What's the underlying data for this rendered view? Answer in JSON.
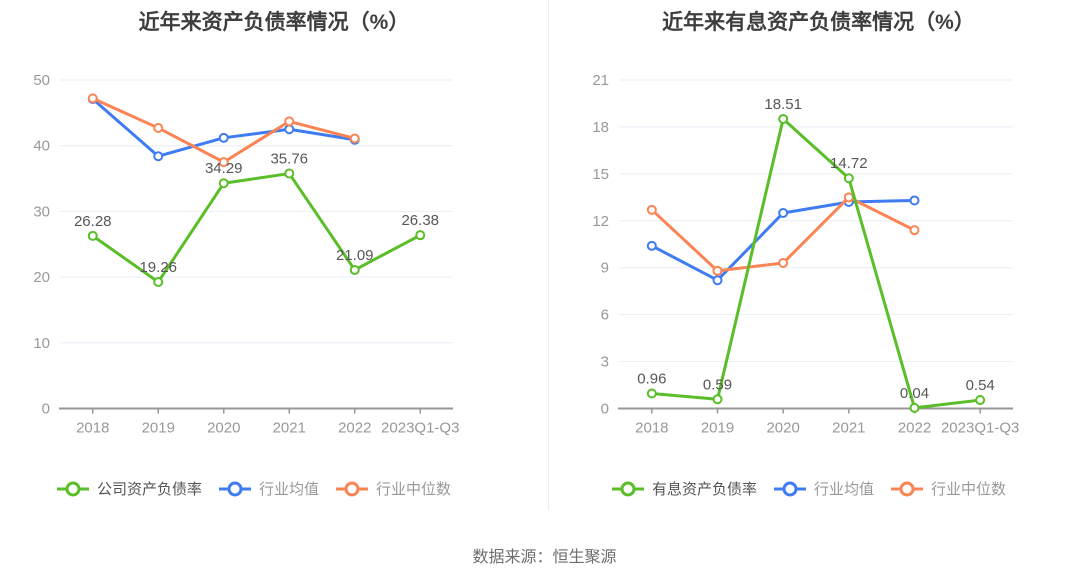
{
  "source": "数据来源：恒生聚源",
  "palette": {
    "company_green": "#5ABE29",
    "industry_mean_blue": "#3F7CF4",
    "industry_median_orange": "#FB8455",
    "grid": "#E9EEF6",
    "axis": "#979797"
  },
  "chart_data": [
    {
      "type": "line",
      "title": "近年来资产负债率情况（%）",
      "categories": [
        "2018",
        "2019",
        "2020",
        "2021",
        "2022",
        "2023Q1-Q3"
      ],
      "xlabel": "",
      "ylabel": "",
      "ylim": [
        0,
        50
      ],
      "y_ticks": [
        0,
        10,
        20,
        30,
        40,
        50
      ],
      "grid": true,
      "legend_position": "bottom",
      "series": [
        {
          "name": "公司资产负债率",
          "color": "#5ABE29",
          "values": [
            26.28,
            19.26,
            34.29,
            35.76,
            21.09,
            26.38
          ],
          "labels": [
            "26.28",
            "19.26",
            "34.29",
            "35.76",
            "21.09",
            "26.38"
          ]
        },
        {
          "name": "行业均值",
          "color": "#3F7CF4",
          "values": [
            47.1,
            38.4,
            41.2,
            42.5,
            40.9
          ]
        },
        {
          "name": "行业中位数",
          "color": "#FB8455",
          "values": [
            47.2,
            42.7,
            37.5,
            43.7,
            41.1
          ]
        }
      ]
    },
    {
      "type": "line",
      "title": "近年来有息资产负债率情况（%）",
      "categories": [
        "2018",
        "2019",
        "2020",
        "2021",
        "2022",
        "2023Q1-Q3"
      ],
      "xlabel": "",
      "ylabel": "",
      "ylim": [
        0,
        21
      ],
      "y_ticks": [
        0,
        3,
        6,
        9,
        12,
        15,
        18,
        21
      ],
      "grid": true,
      "legend_position": "bottom",
      "series": [
        {
          "name": "有息资产负债率",
          "color": "#5ABE29",
          "values": [
            0.96,
            0.59,
            18.51,
            14.72,
            0.04,
            0.54
          ],
          "labels": [
            "0.96",
            "0.59",
            "18.51",
            "14.72",
            "0.04",
            "0.54"
          ]
        },
        {
          "name": "行业均值",
          "color": "#3F7CF4",
          "values": [
            10.4,
            8.2,
            12.5,
            13.2,
            13.3
          ]
        },
        {
          "name": "行业中位数",
          "color": "#FB8455",
          "values": [
            12.7,
            8.8,
            9.3,
            13.5,
            11.4
          ]
        }
      ]
    }
  ]
}
